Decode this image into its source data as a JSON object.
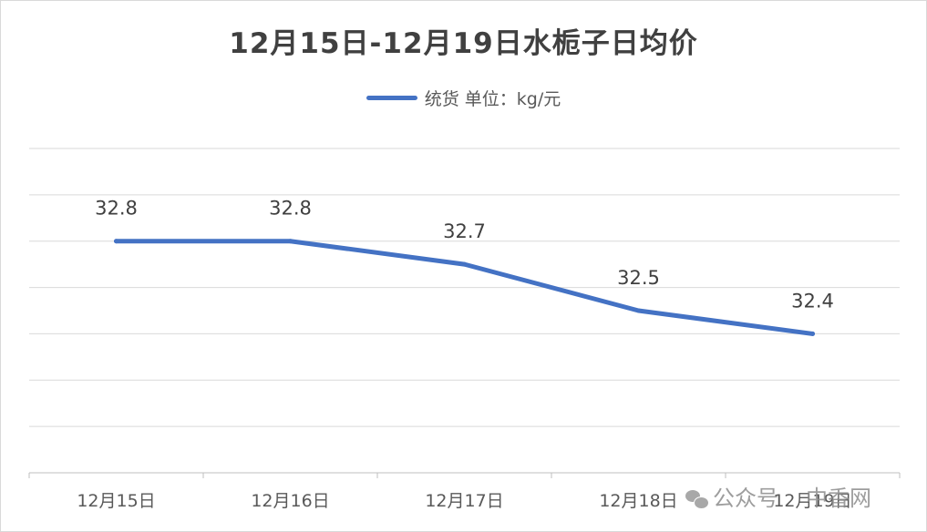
{
  "chart_data": {
    "type": "line",
    "title": "12月15日-12月19日水栀子日均价",
    "categories": [
      "12月15日",
      "12月16日",
      "12月17日",
      "12月18日",
      "12月19日"
    ],
    "series": [
      {
        "name": "统货 单位：kg/元",
        "values": [
          32.8,
          32.8,
          32.7,
          32.5,
          32.4
        ],
        "color": "#4472c4"
      }
    ],
    "data_labels": [
      "32.8",
      "32.8",
      "32.7",
      "32.5",
      "32.4"
    ],
    "xlabel": "",
    "ylabel": "",
    "ylim": [
      31.8,
      33.2
    ],
    "y_gridline_step": 0.2,
    "y_tick_labels_visible": false,
    "grid": true,
    "legend_position": "top"
  },
  "watermark": {
    "icon": "wechat-icon",
    "account_prefix": "公众号",
    "account_name": "中香网"
  }
}
